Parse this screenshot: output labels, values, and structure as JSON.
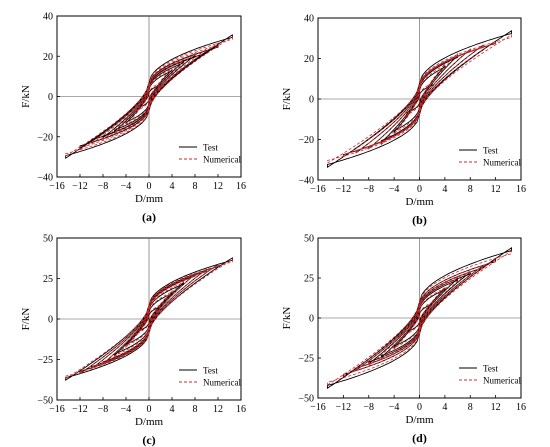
{
  "chart_data": [
    {
      "type": "line",
      "panel_label": "(a)",
      "xlabel": "D/mm",
      "ylabel": "F/kN",
      "xlim": [
        -16,
        16
      ],
      "ylim": [
        -40,
        40
      ],
      "xticks": [
        -16,
        -12,
        -8,
        -4,
        0,
        4,
        8,
        12,
        16
      ],
      "yticks": [
        -40,
        -20,
        0,
        20,
        40
      ],
      "legend_position": "bottom-right",
      "series": [
        {
          "name": "Test",
          "color": "#000000",
          "style": "solid",
          "amplitudes": [
            2,
            4,
            6,
            8,
            10,
            12,
            14.5
          ],
          "peak_forces": [
            6,
            13,
            17,
            20,
            22,
            25,
            30
          ]
        },
        {
          "name": "Numerical",
          "color": "#d62728",
          "style": "dashed",
          "amplitudes": [
            2,
            4,
            6,
            8,
            10,
            12,
            14.5
          ],
          "peak_forces": [
            7,
            14,
            18,
            21,
            23,
            26,
            29
          ]
        }
      ]
    },
    {
      "type": "line",
      "panel_label": "(b)",
      "xlabel": "D/mm",
      "ylabel": "F/kN",
      "xlim": [
        -16,
        16
      ],
      "ylim": [
        -40,
        40
      ],
      "xticks": [
        -16,
        -12,
        -8,
        -4,
        0,
        4,
        8,
        12,
        16
      ],
      "yticks": [
        -40,
        -20,
        0,
        20,
        40
      ],
      "legend_position": "bottom-right",
      "series": [
        {
          "name": "Test",
          "color": "#000000",
          "style": "solid",
          "amplitudes": [
            2,
            4,
            6,
            8,
            10,
            12,
            14.5
          ],
          "peak_forces": [
            7,
            16,
            21,
            24,
            26,
            28,
            33
          ]
        },
        {
          "name": "Numerical",
          "color": "#d62728",
          "style": "dashed",
          "amplitudes": [
            2,
            4,
            6,
            8,
            10,
            12,
            14.5
          ],
          "peak_forces": [
            8,
            17,
            22,
            24,
            26,
            28,
            31
          ]
        }
      ]
    },
    {
      "type": "line",
      "panel_label": "(c)",
      "xlabel": "D/mm",
      "ylabel": "F/kN",
      "xlim": [
        -16,
        16
      ],
      "ylim": [
        -50,
        50
      ],
      "xticks": [
        -16,
        -12,
        -8,
        -4,
        0,
        4,
        8,
        12,
        16
      ],
      "yticks": [
        -50,
        -25,
        0,
        25,
        50
      ],
      "legend_position": "bottom-right",
      "series": [
        {
          "name": "Test",
          "color": "#000000",
          "style": "solid",
          "amplitudes": [
            2,
            4,
            6,
            8,
            10,
            12,
            14.5
          ],
          "peak_forces": [
            8,
            16,
            22,
            27,
            30,
            33,
            37
          ]
        },
        {
          "name": "Numerical",
          "color": "#d62728",
          "style": "dashed",
          "amplitudes": [
            2,
            4,
            6,
            8,
            10,
            12,
            14.5
          ],
          "peak_forces": [
            9,
            17,
            23,
            27,
            30,
            33,
            36
          ]
        }
      ]
    },
    {
      "type": "line",
      "panel_label": "(d)",
      "xlabel": "D/mm",
      "ylabel": "F/kN",
      "xlim": [
        -16,
        16
      ],
      "ylim": [
        -50,
        50
      ],
      "xticks": [
        -16,
        -12,
        -8,
        -4,
        0,
        4,
        8,
        12,
        16
      ],
      "yticks": [
        -50,
        -25,
        0,
        25,
        50
      ],
      "legend_position": "bottom-right",
      "series": [
        {
          "name": "Test",
          "color": "#000000",
          "style": "solid",
          "amplitudes": [
            2,
            4,
            6,
            8,
            10,
            12,
            14.5
          ],
          "peak_forces": [
            9,
            18,
            24,
            28,
            32,
            36,
            43
          ]
        },
        {
          "name": "Numerical",
          "color": "#d62728",
          "style": "dashed",
          "amplitudes": [
            2,
            4,
            6,
            8,
            10,
            12,
            14.5
          ],
          "peak_forces": [
            10,
            19,
            25,
            29,
            32,
            36,
            41
          ]
        }
      ]
    }
  ]
}
